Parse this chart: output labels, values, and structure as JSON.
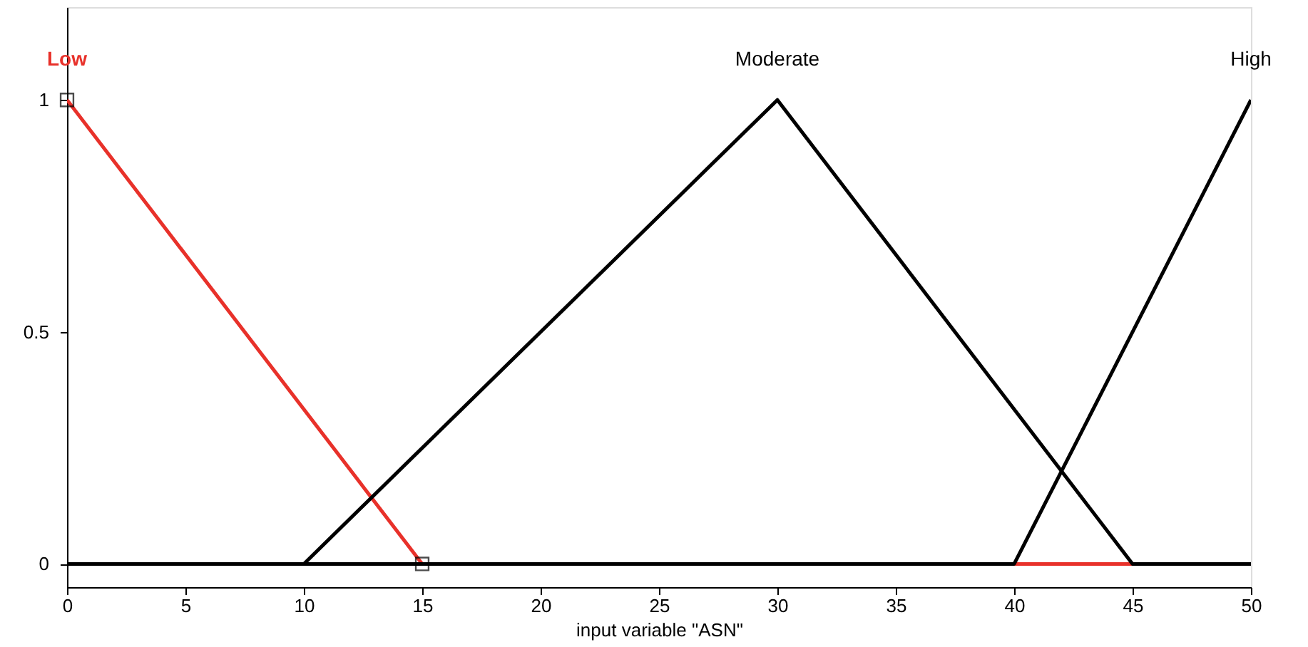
{
  "chart_data": {
    "type": "line",
    "xlabel": "input variable \"ASN\"",
    "xlim": [
      0,
      50
    ],
    "xticks": [
      0,
      5,
      10,
      15,
      20,
      25,
      30,
      35,
      40,
      45,
      50
    ],
    "ylim": [
      -0.05,
      1.2
    ],
    "yticks": [
      0,
      0.5,
      1
    ],
    "grid": false,
    "marker": "none",
    "line_style": "solid",
    "series": [
      {
        "name": "Low",
        "color": "#e8312a",
        "x": [
          0,
          15,
          50
        ],
        "values": [
          1,
          0,
          0
        ]
      },
      {
        "name": "Moderate",
        "color": "#000000",
        "x": [
          0,
          10,
          30,
          45,
          50
        ],
        "values": [
          0,
          0,
          1,
          0,
          0
        ]
      },
      {
        "name": "High",
        "color": "#000000",
        "x": [
          0,
          40,
          50
        ],
        "values": [
          0,
          0,
          1
        ]
      },
      {
        "type": "scatter",
        "marker": "square",
        "color": "#000000",
        "x": [
          0,
          15
        ],
        "values": [
          1,
          0
        ]
      }
    ]
  }
}
